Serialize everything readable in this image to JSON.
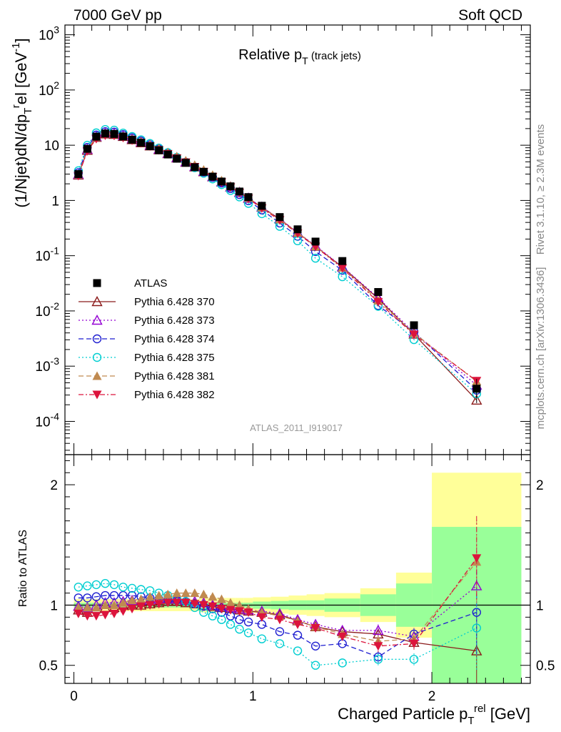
{
  "header": {
    "left": "7000 GeV pp",
    "right": "Soft QCD"
  },
  "side_labels": {
    "rivet": "Rivet 3.1.10, ≥ 2.3M events",
    "mcplots": "mcplots.cern.ch [arXiv:1306.3436]"
  },
  "analysis_id": "ATLAS_2011_I919017",
  "chart_data": {
    "type": "scatter",
    "title": "Relative p_T (track jets)",
    "title_main": "Relative p",
    "title_sub": "T",
    "title_tail": " (track jets)",
    "xlabel": "Charged Particle p_T^rel [GeV]",
    "xlabel_main": "Charged Particle p",
    "xlabel_sub": "T",
    "xlabel_sup": "rel",
    "xlabel_tail": " [GeV]",
    "ylabel": "(1/Njet)dN/dp_T^rel [GeV^-1]",
    "ylabel_parts": [
      "(1/Njet)dN/dp",
      "T",
      "r",
      "el [GeV",
      "-1",
      "]"
    ],
    "ratio_ylabel": "Ratio to ATLAS",
    "xlim": [
      -0.05,
      2.55
    ],
    "ylim": [
      2.5e-05,
      1500
    ],
    "yscale": "log",
    "ratio_ylim": [
      0.35,
      2.25
    ],
    "x_ticks": [
      "0",
      "1",
      "2"
    ],
    "y_ticks": [
      "10^-4",
      "10^-3",
      "10^-2",
      "10^-1",
      "1",
      "10",
      "10^2",
      "10^3"
    ],
    "ratio_ticks": [
      "0.5",
      "1",
      "2"
    ],
    "legend_position": "left-center",
    "x": [
      0.025,
      0.075,
      0.125,
      0.175,
      0.225,
      0.275,
      0.325,
      0.375,
      0.425,
      0.475,
      0.525,
      0.575,
      0.625,
      0.675,
      0.725,
      0.775,
      0.825,
      0.875,
      0.925,
      0.975,
      1.05,
      1.15,
      1.25,
      1.35,
      1.5,
      1.7,
      1.9,
      2.25
    ],
    "x_err": [
      0.025,
      0.025,
      0.025,
      0.025,
      0.025,
      0.025,
      0.025,
      0.025,
      0.025,
      0.025,
      0.025,
      0.025,
      0.025,
      0.025,
      0.025,
      0.025,
      0.025,
      0.025,
      0.025,
      0.025,
      0.05,
      0.05,
      0.05,
      0.05,
      0.1,
      0.1,
      0.1,
      0.25
    ],
    "atlas": [
      3.0,
      8.6,
      14.3,
      16.3,
      16.0,
      14.4,
      12.6,
      11.1,
      9.6,
      8.1,
      6.8,
      5.7,
      4.8,
      4.0,
      3.3,
      2.7,
      2.2,
      1.8,
      1.45,
      1.15,
      0.8,
      0.5,
      0.3,
      0.18,
      0.08,
      0.022,
      0.0055,
      0.00039
    ],
    "ratio_band_stat": [
      0.02,
      0.02,
      0.02,
      0.02,
      0.02,
      0.02,
      0.02,
      0.02,
      0.02,
      0.02,
      0.02,
      0.02,
      0.02,
      0.02,
      0.02,
      0.02,
      0.02,
      0.02,
      0.02,
      0.02,
      0.03,
      0.035,
      0.04,
      0.04,
      0.055,
      0.09,
      0.18,
      0.65
    ],
    "ratio_band_total": [
      0.05,
      0.05,
      0.05,
      0.05,
      0.05,
      0.05,
      0.05,
      0.05,
      0.05,
      0.05,
      0.05,
      0.05,
      0.05,
      0.05,
      0.06,
      0.06,
      0.06,
      0.06,
      0.06,
      0.06,
      0.065,
      0.07,
      0.08,
      0.09,
      0.1,
      0.14,
      0.27,
      1.1
    ],
    "series": [
      {
        "name": "ATLAS",
        "color": "#000000",
        "marker": "square-filled",
        "dash": "none"
      },
      {
        "name": "Pythia 6.428 370",
        "color": "#8b1a1a",
        "marker": "triangle-open",
        "dash": "solid",
        "ratio": [
          0.96,
          0.94,
          0.97,
          0.98,
          0.98,
          1.0,
          1.0,
          1.0,
          1.01,
          1.02,
          1.03,
          1.03,
          1.02,
          1.01,
          1.0,
          0.99,
          0.98,
          0.97,
          0.96,
          0.95,
          0.94,
          0.92,
          0.87,
          0.82,
          0.78,
          0.76,
          0.69,
          0.62
        ]
      },
      {
        "name": "Pythia 6.428 373",
        "color": "#9400d3",
        "marker": "triangle-open",
        "dash": "dotted",
        "ratio": [
          0.99,
          0.98,
          1.0,
          1.02,
          1.02,
          1.03,
          1.04,
          1.04,
          1.05,
          1.05,
          1.05,
          1.05,
          1.04,
          1.03,
          1.02,
          1.0,
          0.99,
          0.98,
          0.97,
          0.96,
          0.95,
          0.93,
          0.88,
          0.84,
          0.79,
          0.79,
          0.74,
          1.16
        ]
      },
      {
        "name": "Pythia 6.428 374",
        "color": "#1f1fd1",
        "marker": "circle-open",
        "dash": "dashed",
        "ratio": [
          1.06,
          1.06,
          1.07,
          1.08,
          1.08,
          1.08,
          1.08,
          1.07,
          1.06,
          1.05,
          1.04,
          1.04,
          1.03,
          1.01,
          0.99,
          0.97,
          0.94,
          0.91,
          0.88,
          0.86,
          0.84,
          0.78,
          0.75,
          0.66,
          0.68,
          0.57,
          0.76,
          0.94
        ]
      },
      {
        "name": "Pythia 6.428 375",
        "color": "#00ced1",
        "marker": "circle-open",
        "dash": "dotted",
        "ratio": [
          1.15,
          1.16,
          1.17,
          1.18,
          1.17,
          1.15,
          1.14,
          1.13,
          1.12,
          1.1,
          1.08,
          1.06,
          1.03,
          0.98,
          0.94,
          0.91,
          0.88,
          0.84,
          0.8,
          0.77,
          0.72,
          0.68,
          0.62,
          0.5,
          0.52,
          0.55,
          0.55,
          0.81
        ]
      },
      {
        "name": "Pythia 6.428 381",
        "color": "#c08a50",
        "marker": "triangle-filled",
        "dash": "dashed",
        "ratio": [
          0.98,
          0.98,
          0.98,
          1.0,
          1.0,
          1.02,
          1.04,
          1.05,
          1.07,
          1.08,
          1.09,
          1.1,
          1.1,
          1.1,
          1.09,
          1.07,
          1.05,
          1.02,
          1.0,
          0.97,
          0.94,
          0.91,
          0.87,
          0.82,
          0.76,
          0.7,
          0.72,
          1.36
        ]
      },
      {
        "name": "Pythia 6.428 382",
        "color": "#dc143c",
        "marker": "triangle-down-filled",
        "dash": "dashdot",
        "ratio": [
          0.93,
          0.91,
          0.91,
          0.92,
          0.93,
          0.95,
          0.97,
          0.99,
          1.0,
          1.01,
          1.02,
          1.02,
          1.02,
          1.01,
          1.0,
          0.99,
          0.97,
          0.96,
          0.95,
          0.94,
          0.9,
          0.88,
          0.84,
          0.81,
          0.74,
          0.66,
          0.68,
          1.39
        ]
      }
    ]
  }
}
